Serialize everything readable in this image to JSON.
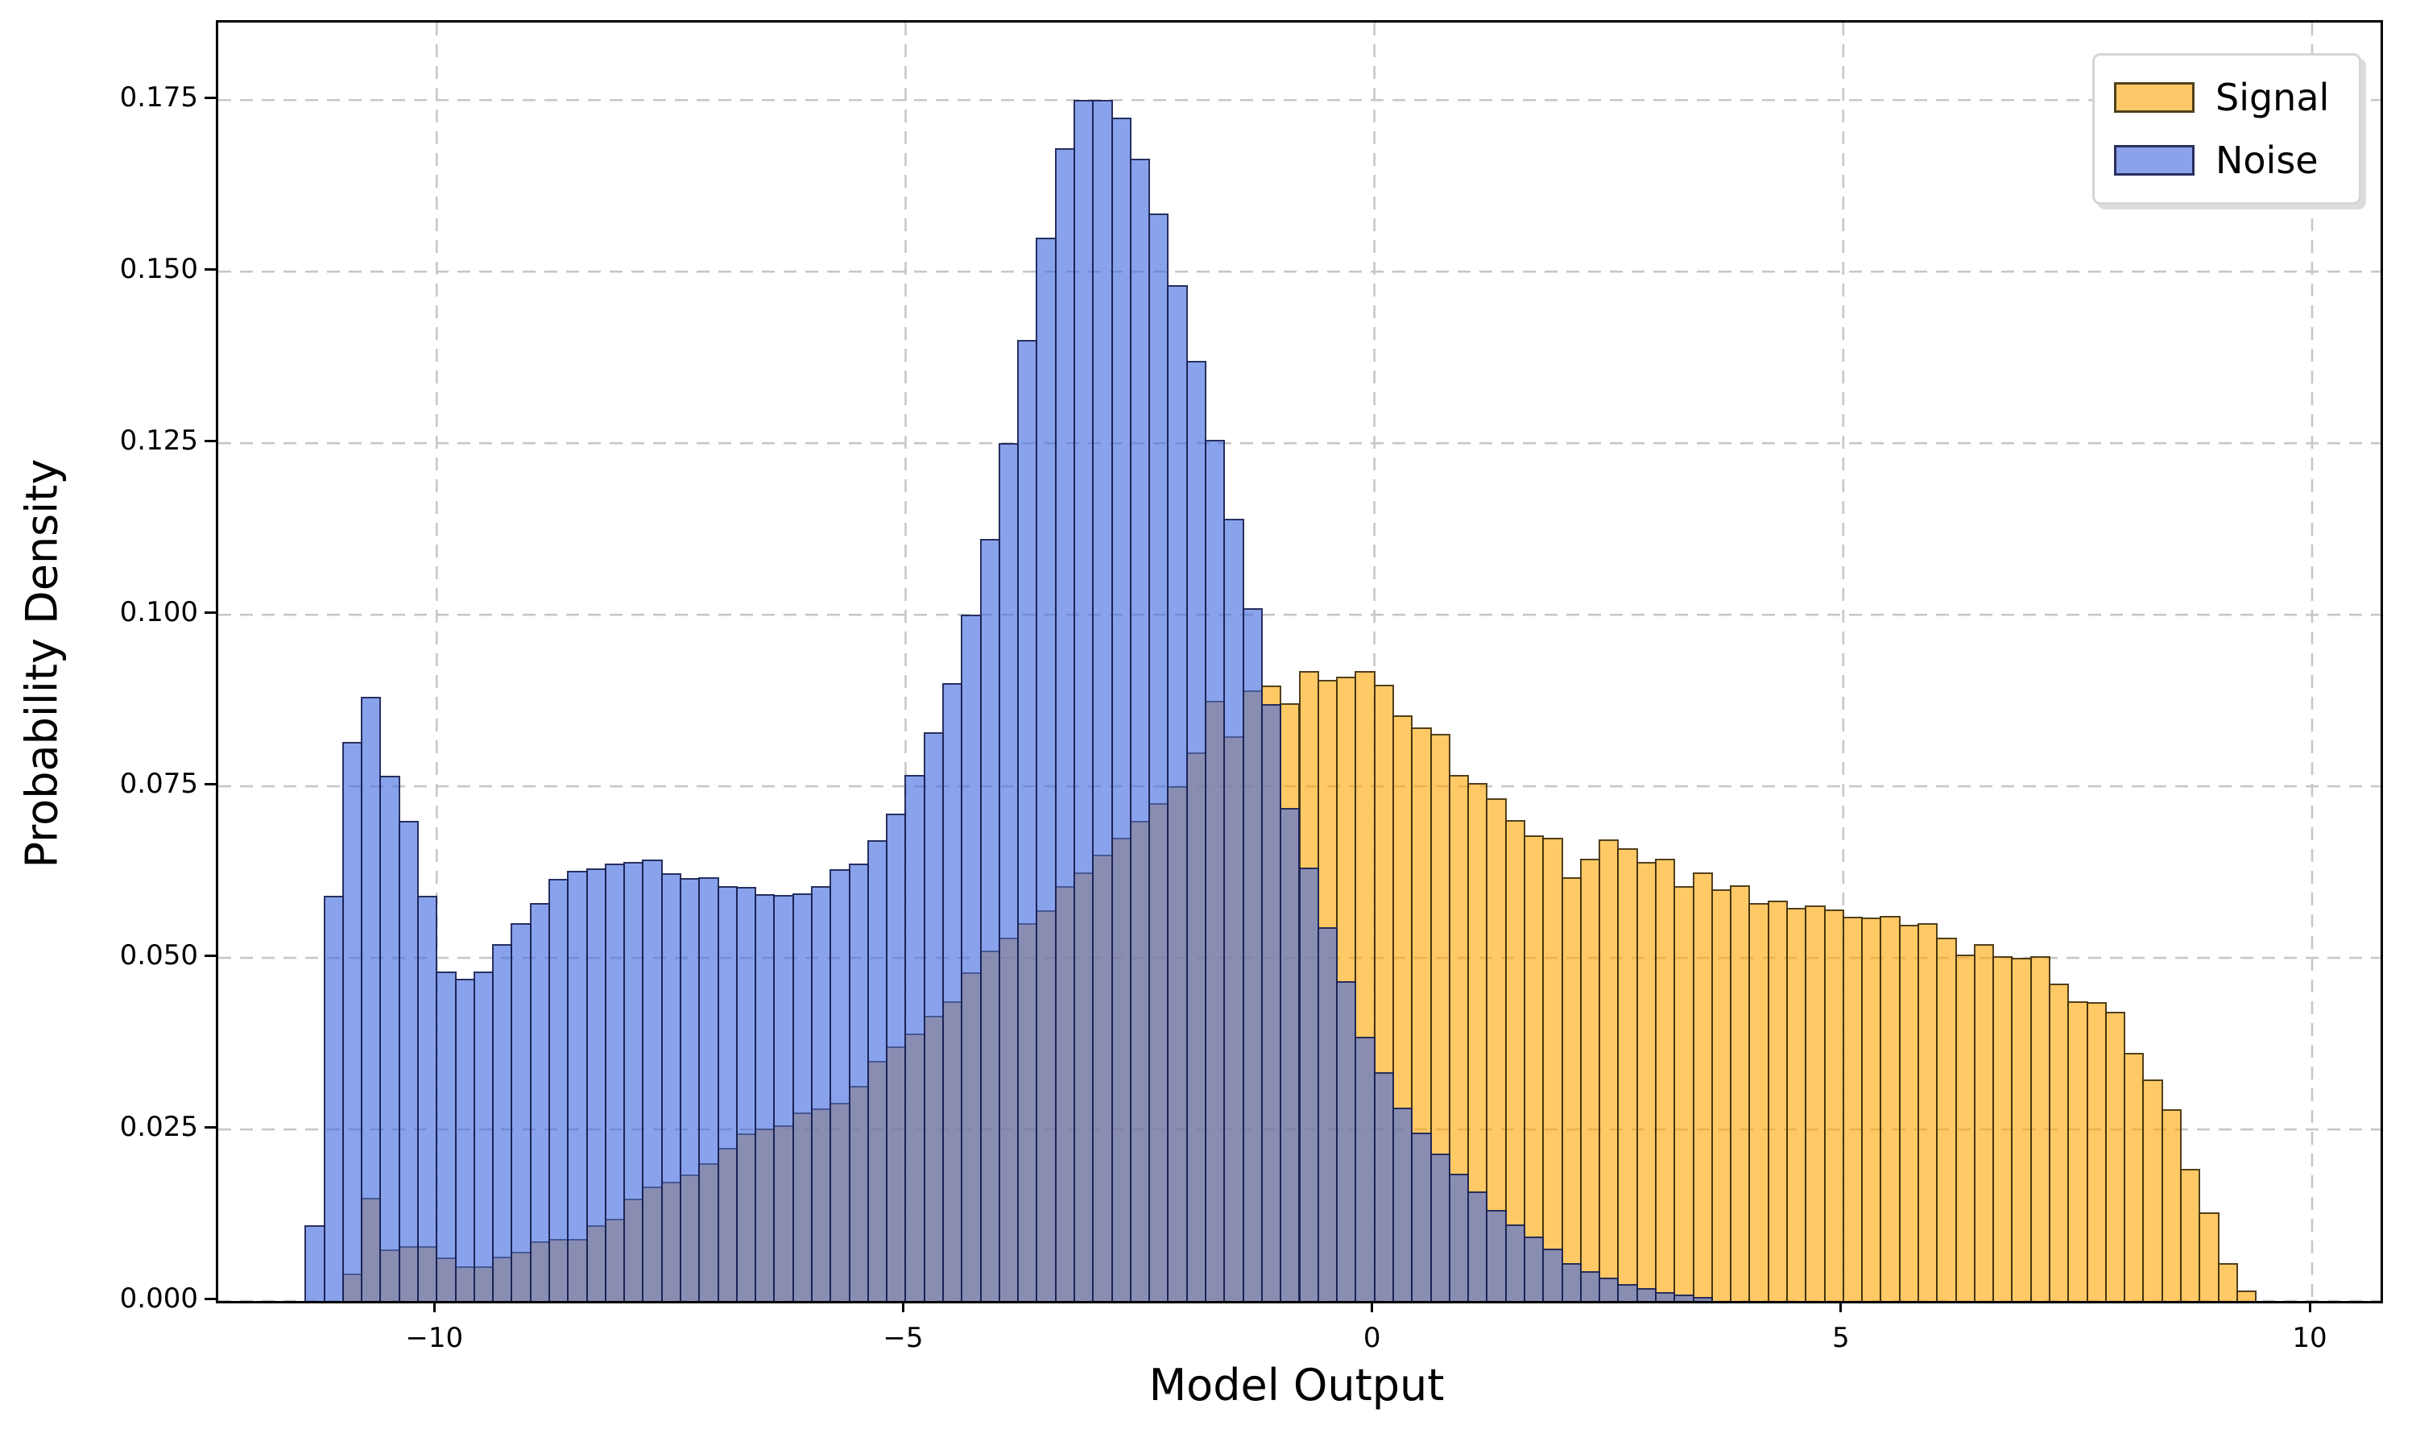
{
  "chart_data": {
    "type": "bar",
    "subtype": "overlapping-histogram",
    "title": "",
    "xlabel": "Model Output",
    "ylabel": "Probability Density",
    "xlim": [
      -12.33,
      10.73
    ],
    "ylim": [
      0,
      0.1863
    ],
    "grid": true,
    "legend_position": "upper right",
    "x_ticks": [
      -10,
      -5,
      0,
      5,
      10
    ],
    "x_tick_labels": [
      "−10",
      "−5",
      "0",
      "5",
      "10"
    ],
    "y_ticks": [
      0.0,
      0.025,
      0.05,
      0.075,
      0.1,
      0.125,
      0.15,
      0.175
    ],
    "y_tick_labels": [
      "0.000",
      "0.025",
      "0.050",
      "0.075",
      "0.100",
      "0.125",
      "0.150",
      "0.175"
    ],
    "bin_width": 0.2,
    "bin_centers": [
      -11.3,
      -11.1,
      -10.9,
      -10.7,
      -10.5,
      -10.3,
      -10.1,
      -9.9,
      -9.7,
      -9.5,
      -9.3,
      -9.1,
      -8.9,
      -8.7,
      -8.5,
      -8.3,
      -8.1,
      -7.9,
      -7.7,
      -7.5,
      -7.3,
      -7.1,
      -6.9,
      -6.7,
      -6.5,
      -6.3,
      -6.1,
      -5.9,
      -5.7,
      -5.5,
      -5.3,
      -5.1,
      -4.9,
      -4.7,
      -4.5,
      -4.3,
      -4.1,
      -3.9,
      -3.7,
      -3.5,
      -3.3,
      -3.1,
      -2.9,
      -2.7,
      -2.5,
      -2.3,
      -2.1,
      -1.9,
      -1.7,
      -1.5,
      -1.3,
      -1.1,
      -0.9,
      -0.7,
      -0.5,
      -0.3,
      -0.1,
      0.1,
      0.3,
      0.5,
      0.7,
      0.9,
      1.1,
      1.3,
      1.5,
      1.7,
      1.9,
      2.1,
      2.3,
      2.5,
      2.7,
      2.9,
      3.1,
      3.3,
      3.5,
      3.7,
      3.9,
      4.1,
      4.3,
      4.5,
      4.7,
      4.9,
      5.1,
      5.3,
      5.5,
      5.7,
      5.9,
      6.1,
      6.3,
      6.5,
      6.7,
      6.9,
      7.1,
      7.3,
      7.5,
      7.7,
      7.9,
      8.1,
      8.3,
      8.5,
      8.7,
      8.9,
      9.1,
      9.3,
      9.5
    ],
    "series": [
      {
        "name": "Signal",
        "fill": "rgba(255,165,0,0.60)",
        "edge": "rgba(50,40,15,0.85)",
        "observed_fill_hex": "#FDC868",
        "values": [
          0,
          0,
          0.004,
          0.015,
          0.0075,
          0.008,
          0.008,
          0.0063,
          0.005,
          0.005,
          0.0065,
          0.0072,
          0.0087,
          0.009,
          0.009,
          0.011,
          0.012,
          0.0149,
          0.0167,
          0.0174,
          0.0184,
          0.0201,
          0.0223,
          0.0244,
          0.0251,
          0.0256,
          0.0275,
          0.028,
          0.0289,
          0.0314,
          0.035,
          0.0371,
          0.039,
          0.0416,
          0.0437,
          0.0479,
          0.0511,
          0.053,
          0.0551,
          0.0569,
          0.0605,
          0.0625,
          0.065,
          0.0675,
          0.07,
          0.0725,
          0.075,
          0.08,
          0.0875,
          0.0823,
          0.089,
          0.0897,
          0.0871,
          0.0918,
          0.0905,
          0.091,
          0.0918,
          0.0898,
          0.0853,
          0.0836,
          0.0827,
          0.0766,
          0.0755,
          0.0732,
          0.0701,
          0.0678,
          0.0675,
          0.0618,
          0.0645,
          0.0673,
          0.066,
          0.064,
          0.0645,
          0.0605,
          0.0625,
          0.06,
          0.0606,
          0.058,
          0.0583,
          0.0573,
          0.0576,
          0.057,
          0.056,
          0.0559,
          0.0561,
          0.0548,
          0.055,
          0.053,
          0.0505,
          0.052,
          0.0503,
          0.05,
          0.0502,
          0.0463,
          0.0437,
          0.0435,
          0.0422,
          0.0361,
          0.0323,
          0.0279,
          0.0193,
          0.0129,
          0.0055,
          0.0015,
          0
        ]
      },
      {
        "name": "Noise",
        "fill": "rgba(65,105,225,0.62)",
        "edge": "rgba(22,28,70,0.85)",
        "observed_fill_hex": "#8BA1E9",
        "values": [
          0.011,
          0.059,
          0.0815,
          0.088,
          0.0765,
          0.07,
          0.059,
          0.048,
          0.047,
          0.048,
          0.052,
          0.055,
          0.058,
          0.0615,
          0.0627,
          0.063,
          0.0637,
          0.064,
          0.0643,
          0.0623,
          0.0616,
          0.0617,
          0.0605,
          0.0603,
          0.0593,
          0.0592,
          0.0594,
          0.0605,
          0.0629,
          0.0638,
          0.0671,
          0.071,
          0.0766,
          0.0829,
          0.09,
          0.1,
          0.111,
          0.125,
          0.14,
          0.155,
          0.168,
          0.175,
          0.175,
          0.1725,
          0.1665,
          0.1585,
          0.148,
          0.137,
          0.1255,
          0.114,
          0.101,
          0.087,
          0.0719,
          0.0632,
          0.0545,
          0.0466,
          0.0385,
          0.0333,
          0.0282,
          0.0245,
          0.0215,
          0.0185,
          0.016,
          0.0133,
          0.0112,
          0.0094,
          0.0076,
          0.0055,
          0.0043,
          0.0034,
          0.0025,
          0.0019,
          0.0013,
          0.0009,
          0.0006,
          0,
          0,
          0,
          0,
          0,
          0,
          0,
          0,
          0,
          0,
          0,
          0,
          0,
          0,
          0,
          0,
          0,
          0,
          0,
          0,
          0,
          0,
          0,
          0,
          0,
          0,
          0,
          0,
          0,
          0
        ]
      }
    ],
    "overlap_observed_hex": "#8C91AE",
    "gridline_color": "#c7c7c7"
  }
}
